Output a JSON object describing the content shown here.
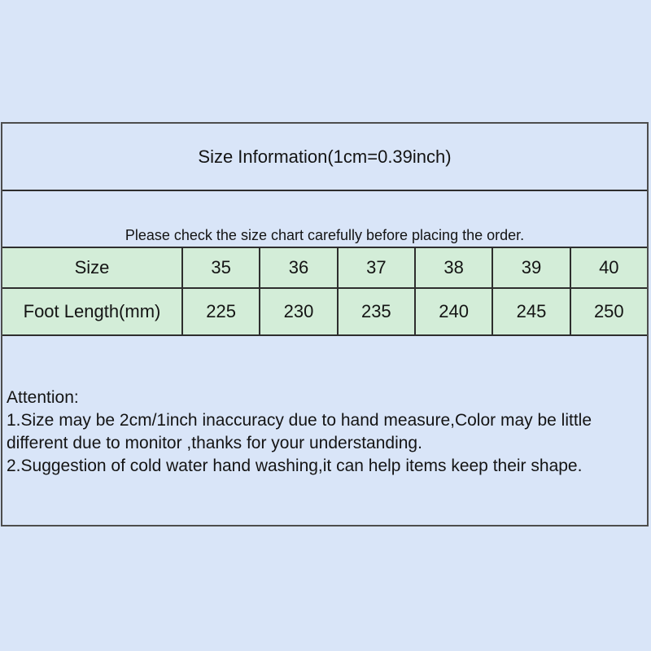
{
  "colors": {
    "page_background": "#d9e5f8",
    "table_row_blue": "#d9e5f8",
    "table_row_green": "#d3edd8",
    "border_outer": "#4d4d4d",
    "border_inner": "#2e2e2e",
    "text": "#141414"
  },
  "size_chart": {
    "title": "Size Information(1cm=0.39inch)",
    "notice": "Please check the size chart carefully before placing the order.",
    "row_labels": {
      "size": "Size",
      "foot_length": "Foot Length(mm)"
    },
    "sizes": [
      "35",
      "36",
      "37",
      "38",
      "39",
      "40"
    ],
    "foot_lengths_mm": [
      "225",
      "230",
      "235",
      "240",
      "245",
      "250"
    ],
    "attention": {
      "heading": "Attention:",
      "lines": [
        "1.Size may be 2cm/1inch inaccuracy due to hand measure,Color may be little",
        "different due to monitor ,thanks for your understanding.",
        "2.Suggestion of cold water hand washing,it can help items keep their shape."
      ]
    }
  },
  "chart_data": {
    "type": "table",
    "title": "Size Information(1cm=0.39inch)",
    "columns": [
      "Size",
      "35",
      "36",
      "37",
      "38",
      "39",
      "40"
    ],
    "rows": [
      [
        "Foot Length(mm)",
        "225",
        "230",
        "235",
        "240",
        "245",
        "250"
      ]
    ]
  }
}
